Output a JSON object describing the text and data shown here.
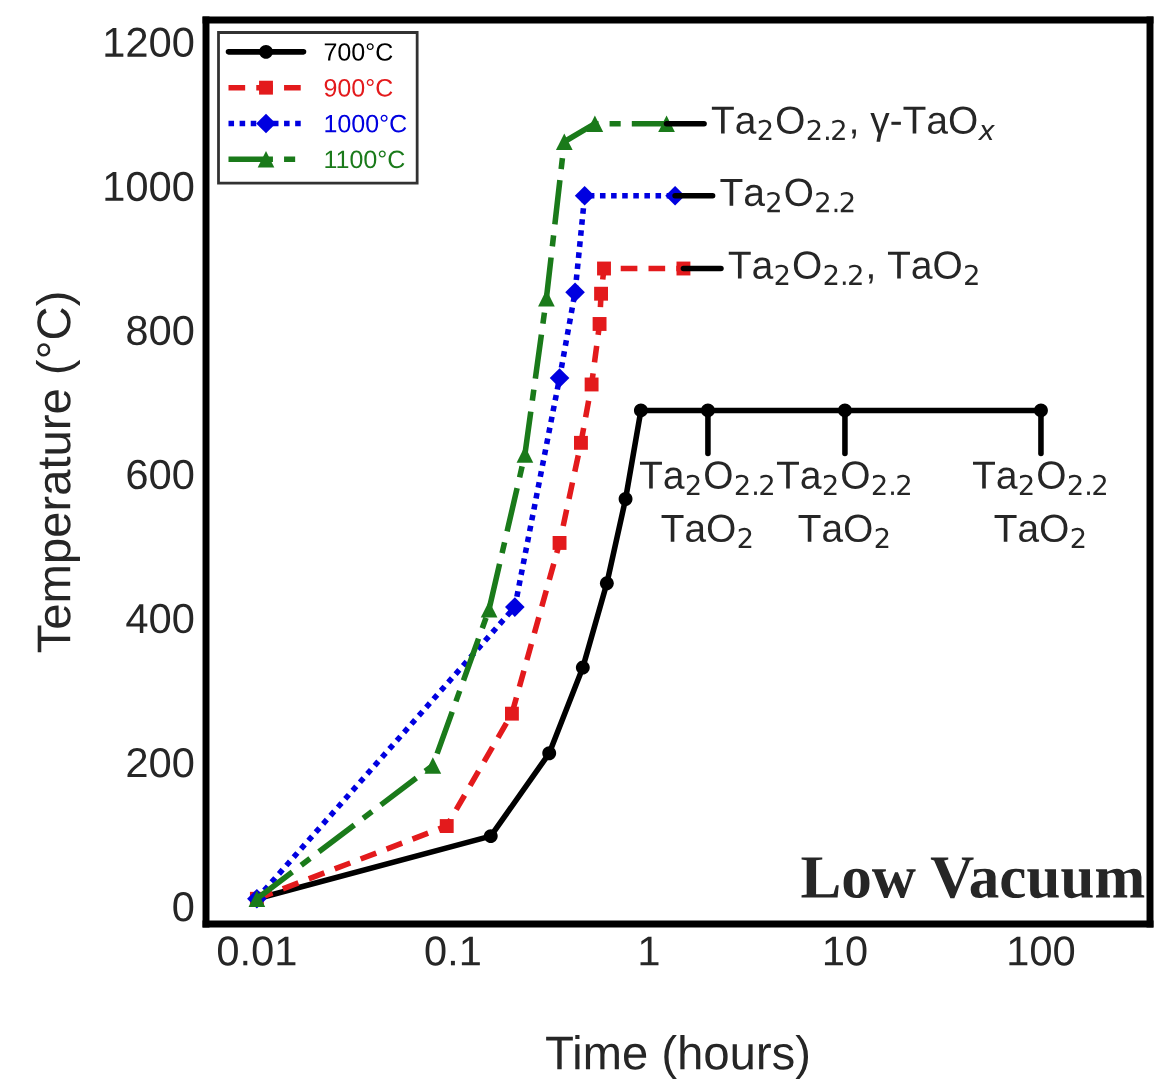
{
  "chart_data": {
    "type": "line",
    "xlabel": "Time (hours)",
    "ylabel": "Temperature (°C)",
    "log": "x",
    "xlim": [
      0.0055,
      360
    ],
    "xticks": [
      0.01,
      0.1,
      1,
      10,
      100
    ],
    "ylim": [
      -25,
      1230
    ],
    "yticks": [
      0,
      200,
      400,
      600,
      800,
      1000,
      1200
    ],
    "grid": false,
    "legend": "top left",
    "series": [
      {
        "name": "700°C",
        "color": "#000000",
        "marker": "circle",
        "line_style": "solid",
        "x": [
          0.01,
          0.156,
          0.31,
          0.46,
          0.61,
          0.76,
          0.91,
          2,
          10,
          100
        ],
        "values": [
          10,
          97,
          212,
          331,
          448,
          565,
          688,
          688,
          688,
          688
        ]
      },
      {
        "name": "900°C",
        "color": "#e31a1c",
        "marker": "square",
        "line_style": "dashed",
        "x": [
          0.01,
          0.093,
          0.2,
          0.35,
          0.45,
          0.51,
          0.56,
          0.57,
          0.59,
          1.5
        ],
        "values": [
          10,
          111,
          267,
          504,
          643,
          724,
          808,
          850,
          885,
          885
        ]
      },
      {
        "name": "1000°C",
        "color": "#0000e0",
        "marker": "diamond",
        "line_style": "dotted",
        "x": [
          0.01,
          0.207,
          0.35,
          0.42,
          0.47,
          1.36
        ],
        "values": [
          10,
          415,
          733,
          852,
          986,
          986
        ]
      },
      {
        "name": "1100°C",
        "color": "#1a7a1a",
        "marker": "triangle",
        "line_style": "dashdot",
        "x": [
          0.01,
          0.079,
          0.153,
          0.233,
          0.3,
          0.37,
          0.53,
          1.23
        ],
        "values": [
          10,
          195,
          412,
          627,
          844,
          1061,
          1086,
          1086
        ]
      }
    ],
    "annotations": [
      {
        "text": "Ta$_{2}$O$_{2.2}$, γ-TaO$_{x}$",
        "x": 1.23,
        "y": 1086
      },
      {
        "text": "Ta$_{2}$O$_{2.2}$",
        "x": 1.36,
        "y": 986
      },
      {
        "text": "Ta$_{2}$O$_{2.2}$, TaO$_{2}$",
        "x": 1.5,
        "y": 885
      },
      {
        "text": "Ta$_{2}$O$_{2.2}$\nTaO$_{2}$",
        "x": 2,
        "y": 688
      },
      {
        "text": "Ta$_{2}$O$_{2.2}$\nTaO$_{2}$",
        "x": 10,
        "y": 688
      },
      {
        "text": "Ta$_{2}$O$_{2.2}$\nTaO$_{2}$",
        "x": 100,
        "y": 688
      },
      "Low Vacuum"
    ]
  }
}
